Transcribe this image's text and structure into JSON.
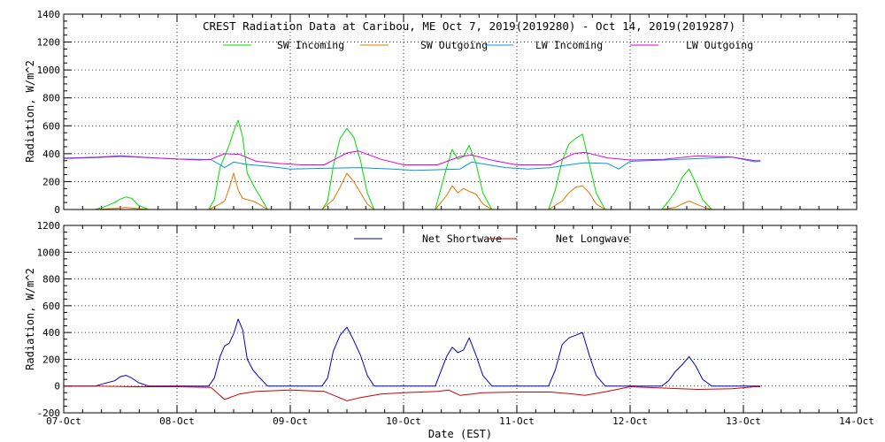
{
  "chart_data": {
    "title": "CREST Radiation Data at Caribou, ME   Oct  7, 2019(2019280) - Oct 14, 2019(2019287)",
    "xlabel": "Date (EST)",
    "x_ticks": [
      "07-Oct",
      "08-Oct",
      "09-Oct",
      "10-Oct",
      "11-Oct",
      "12-Oct",
      "13-Oct",
      "14-Oct"
    ],
    "xlim_days": [
      0,
      7
    ],
    "colors": {
      "sw_incoming": "#00dd00",
      "sw_outgoing": "#e07800",
      "lw_incoming": "#0098d8",
      "lw_outgoing": "#e000e0",
      "net_shortwave": "#0000c0",
      "net_longwave": "#d00000"
    },
    "panels": [
      {
        "type": "line",
        "ylabel": "Radiation, W/m^2",
        "ylim": [
          0,
          1400
        ],
        "y_ticks": [
          "0",
          "200",
          "400",
          "600",
          "800",
          "1000",
          "1200",
          "1400"
        ],
        "x_unit": "days since 07-Oct 00:00 EST",
        "legend": [
          "SW Incoming",
          "SW Outgoing",
          "LW Incoming",
          "LW Outgoing"
        ],
        "series": [
          {
            "name": "SW Incoming",
            "color_key": "sw_incoming",
            "x": [
              0.28,
              0.36,
              0.45,
              0.5,
              0.55,
              0.6,
              0.66,
              0.75,
              1.28,
              1.33,
              1.38,
              1.42,
              1.46,
              1.5,
              1.54,
              1.58,
              1.62,
              1.67,
              1.72,
              1.8,
              2.28,
              2.33,
              2.38,
              2.44,
              2.5,
              2.56,
              2.62,
              2.68,
              2.74,
              3.28,
              3.38,
              3.43,
              3.48,
              3.53,
              3.58,
              3.64,
              3.7,
              3.78,
              4.28,
              4.34,
              4.4,
              4.46,
              4.52,
              4.58,
              4.64,
              4.7,
              4.78,
              5.28,
              5.34,
              5.4,
              5.46,
              5.52,
              5.58,
              5.64,
              5.72
            ],
            "y": [
              0,
              20,
              50,
              75,
              90,
              80,
              30,
              0,
              0,
              70,
              300,
              380,
              460,
              560,
              640,
              520,
              260,
              180,
              110,
              0,
              0,
              60,
              310,
              510,
              580,
              520,
              350,
              120,
              0,
              0,
              300,
              430,
              360,
              380,
              460,
              330,
              120,
              0,
              0,
              140,
              350,
              470,
              510,
              540,
              330,
              120,
              0,
              0,
              60,
              130,
              230,
              290,
              190,
              70,
              0
            ]
          },
          {
            "name": "SW Outgoing",
            "color_key": "sw_outgoing",
            "x": [
              0.28,
              0.45,
              0.55,
              0.66,
              0.75,
              1.28,
              1.38,
              1.42,
              1.46,
              1.5,
              1.54,
              1.58,
              1.62,
              1.67,
              1.72,
              1.8,
              2.28,
              2.38,
              2.44,
              2.5,
              2.56,
              2.62,
              2.68,
              2.74,
              3.28,
              3.38,
              3.43,
              3.48,
              3.53,
              3.58,
              3.64,
              3.7,
              3.78,
              4.28,
              4.4,
              4.46,
              4.52,
              4.58,
              4.64,
              4.7,
              4.78,
              5.28,
              5.4,
              5.46,
              5.52,
              5.58,
              5.64,
              5.72
            ],
            "y": [
              0,
              8,
              15,
              6,
              0,
              0,
              40,
              60,
              150,
              260,
              140,
              80,
              70,
              60,
              40,
              0,
              0,
              70,
              160,
              260,
              200,
              120,
              40,
              0,
              0,
              100,
              170,
              120,
              150,
              130,
              110,
              40,
              0,
              0,
              60,
              120,
              160,
              170,
              120,
              40,
              0,
              0,
              15,
              40,
              60,
              40,
              20,
              0
            ]
          },
          {
            "name": "LW Incoming",
            "color_key": "lw_incoming",
            "x": [
              0,
              0.3,
              0.5,
              0.8,
              1.0,
              1.3,
              1.42,
              1.5,
              1.6,
              1.8,
              2.0,
              2.3,
              2.6,
              2.9,
              3.1,
              3.3,
              3.5,
              3.6,
              3.9,
              4.1,
              4.3,
              4.5,
              4.6,
              4.8,
              4.9,
              5.0,
              5.3,
              5.6,
              5.9,
              6.1,
              6.15
            ],
            "y": [
              365,
              372,
              380,
              370,
              362,
              358,
              300,
              340,
              325,
              310,
              290,
              295,
              300,
              290,
              280,
              285,
              290,
              340,
              300,
              290,
              300,
              325,
              335,
              330,
              290,
              345,
              355,
              365,
              375,
              342,
              345
            ]
          },
          {
            "name": "LW Outgoing",
            "color_key": "lw_outgoing",
            "x": [
              0,
              0.3,
              0.5,
              0.8,
              1.0,
              1.2,
              1.3,
              1.42,
              1.55,
              1.7,
              1.9,
              2.1,
              2.3,
              2.5,
              2.6,
              2.8,
              3.0,
              3.3,
              3.5,
              3.6,
              3.8,
              4.0,
              4.3,
              4.5,
              4.6,
              4.8,
              5.0,
              5.3,
              5.6,
              5.9,
              6.1,
              6.15
            ],
            "y": [
              368,
              375,
              385,
              370,
              362,
              355,
              360,
              400,
              395,
              345,
              330,
              320,
              320,
              405,
              420,
              360,
              320,
              320,
              380,
              390,
              350,
              320,
              320,
              400,
              410,
              370,
              355,
              360,
              385,
              375,
              350,
              350
            ]
          }
        ]
      },
      {
        "type": "line",
        "ylabel": "Radiation, W/m^2",
        "ylim": [
          -200,
          1200
        ],
        "y_ticks": [
          "-200",
          "0",
          "200",
          "400",
          "600",
          "800",
          "1000",
          "1200"
        ],
        "x_unit": "days since 07-Oct 00:00 EST",
        "legend": [
          "Net Shortwave",
          "Net Longwave"
        ],
        "series": [
          {
            "name": "Net Shortwave",
            "color_key": "net_shortwave",
            "x": [
              0,
              0.28,
              0.36,
              0.45,
              0.5,
              0.55,
              0.6,
              0.66,
              0.75,
              1.28,
              1.33,
              1.38,
              1.42,
              1.46,
              1.5,
              1.54,
              1.58,
              1.62,
              1.67,
              1.72,
              1.8,
              2.28,
              2.33,
              2.38,
              2.44,
              2.5,
              2.56,
              2.62,
              2.68,
              2.74,
              3.28,
              3.38,
              3.43,
              3.48,
              3.53,
              3.58,
              3.64,
              3.7,
              3.78,
              4.28,
              4.34,
              4.4,
              4.46,
              4.52,
              4.58,
              4.64,
              4.7,
              4.78,
              5.28,
              5.34,
              5.4,
              5.46,
              5.52,
              5.58,
              5.64,
              5.72,
              6.15
            ],
            "y": [
              0,
              0,
              20,
              40,
              70,
              80,
              60,
              25,
              0,
              0,
              60,
              220,
              300,
              320,
              390,
              500,
              420,
              200,
              120,
              70,
              0,
              0,
              60,
              260,
              380,
              440,
              340,
              230,
              80,
              0,
              0,
              220,
              290,
              250,
              270,
              360,
              230,
              80,
              0,
              0,
              120,
              310,
              360,
              380,
              400,
              230,
              80,
              0,
              0,
              40,
              110,
              160,
              220,
              150,
              50,
              0,
              0
            ]
          },
          {
            "name": "Net Longwave",
            "color_key": "net_longwave",
            "x": [
              0,
              0.3,
              0.6,
              1.0,
              1.3,
              1.42,
              1.55,
              1.7,
              2.0,
              2.3,
              2.5,
              2.6,
              2.8,
              3.0,
              3.3,
              3.4,
              3.5,
              3.7,
              4.0,
              4.3,
              4.5,
              4.6,
              4.8,
              5.0,
              5.3,
              5.6,
              5.9,
              6.1,
              6.15
            ],
            "y": [
              0,
              0,
              -5,
              -5,
              -10,
              -100,
              -60,
              -40,
              -30,
              -40,
              -110,
              -90,
              -60,
              -50,
              -40,
              -30,
              -70,
              -50,
              -45,
              -45,
              -60,
              -70,
              -40,
              -5,
              -15,
              -25,
              -20,
              -5,
              -5
            ]
          }
        ]
      }
    ]
  }
}
